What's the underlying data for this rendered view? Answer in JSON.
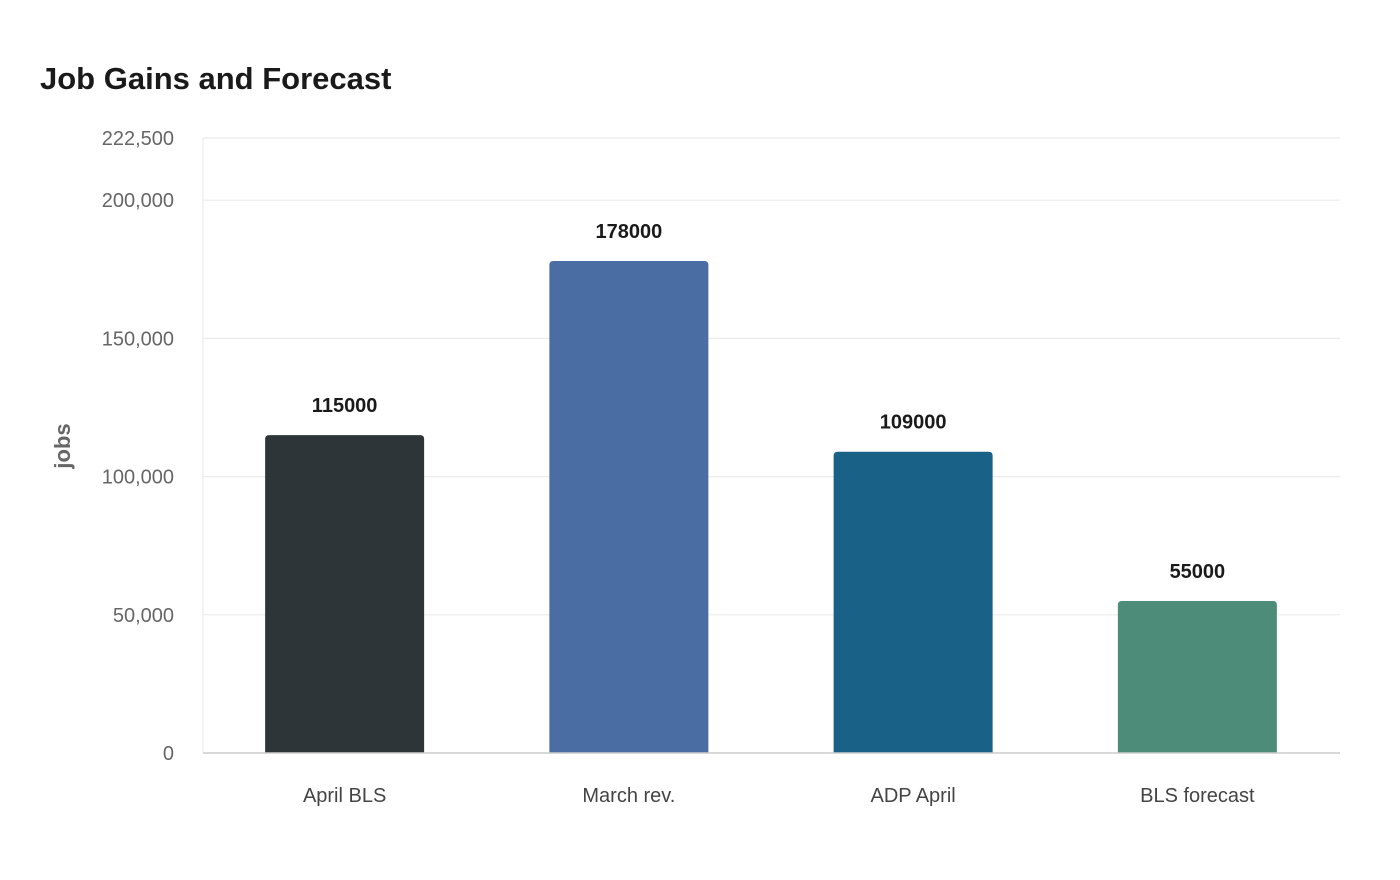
{
  "chart_data": {
    "type": "bar",
    "title": "Job Gains and Forecast",
    "xlabel": "",
    "ylabel": "jobs",
    "categories": [
      "April BLS",
      "March rev.",
      "ADP April",
      "BLS forecast"
    ],
    "values": [
      115000,
      178000,
      109000,
      55000
    ],
    "value_labels": [
      "115000",
      "178000",
      "109000",
      "55000"
    ],
    "colors": [
      "#2e3538",
      "#4a6ea3",
      "#196187",
      "#4e8c7a"
    ],
    "ylim": [
      0,
      222500
    ],
    "yticks": [
      0,
      50000,
      100000,
      150000,
      200000,
      222500
    ],
    "ytick_labels": [
      "0",
      "50,000",
      "100,000",
      "150,000",
      "200,000",
      "222,500"
    ],
    "grid": true,
    "legend": "none"
  }
}
